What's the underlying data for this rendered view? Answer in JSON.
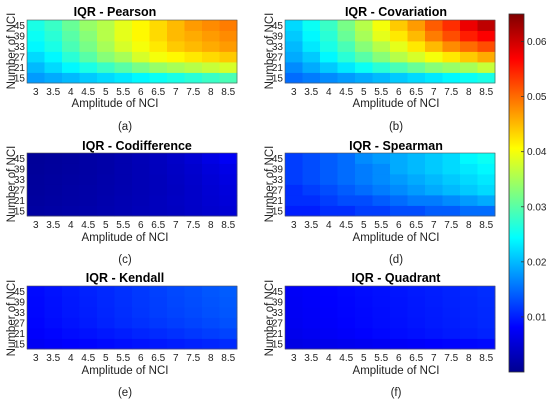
{
  "chart_data": [
    {
      "type": "heatmap",
      "title": "IQR - Pearson",
      "caption": "(a)",
      "xlabel": "Amplitude of NCI",
      "ylabel": "Number of NCI",
      "x": [
        3,
        3.5,
        4,
        4.5,
        5,
        5.5,
        6,
        6.5,
        7,
        7.5,
        8,
        8.5
      ],
      "x_ticks": [
        "3",
        "3.5",
        "4",
        "4.5",
        "5",
        "5.5",
        "6",
        "6.5",
        "7",
        "7.5",
        "8",
        "8.5"
      ],
      "y": [
        15,
        21,
        27,
        33,
        39,
        45
      ],
      "y_ticks": [
        "15",
        "21",
        "27",
        "33",
        "39",
        "45"
      ],
      "z": [
        [
          0.018,
          0.019,
          0.02,
          0.021,
          0.022,
          0.023,
          0.024,
          0.025,
          0.026,
          0.027,
          0.028,
          0.029
        ],
        [
          0.02,
          0.022,
          0.024,
          0.026,
          0.028,
          0.03,
          0.032,
          0.034,
          0.035,
          0.036,
          0.037,
          0.038
        ],
        [
          0.022,
          0.024,
          0.027,
          0.03,
          0.033,
          0.035,
          0.038,
          0.04,
          0.041,
          0.042,
          0.043,
          0.044
        ],
        [
          0.024,
          0.026,
          0.029,
          0.032,
          0.035,
          0.038,
          0.04,
          0.042,
          0.044,
          0.045,
          0.046,
          0.047
        ],
        [
          0.025,
          0.027,
          0.03,
          0.033,
          0.036,
          0.039,
          0.041,
          0.043,
          0.045,
          0.046,
          0.047,
          0.048
        ],
        [
          0.026,
          0.028,
          0.031,
          0.034,
          0.036,
          0.039,
          0.041,
          0.043,
          0.045,
          0.047,
          0.048,
          0.049
        ]
      ]
    },
    {
      "type": "heatmap",
      "title": "IQR - Covariation",
      "caption": "(b)",
      "xlabel": "Amplitude of NCI",
      "ylabel": "Number of NCI",
      "x": [
        3,
        3.5,
        4,
        4.5,
        5,
        5.5,
        6,
        6.5,
        7,
        7.5,
        8,
        8.5
      ],
      "x_ticks": [
        "3",
        "3.5",
        "4",
        "4.5",
        "5",
        "5.5",
        "6",
        "6.5",
        "7",
        "7.5",
        "8",
        "8.5"
      ],
      "y": [
        15,
        21,
        27,
        33,
        39,
        45
      ],
      "y_ticks": [
        "15",
        "21",
        "27",
        "33",
        "39",
        "45"
      ],
      "z": [
        [
          0.015,
          0.016,
          0.017,
          0.018,
          0.019,
          0.02,
          0.021,
          0.022,
          0.023,
          0.024,
          0.025,
          0.026
        ],
        [
          0.017,
          0.019,
          0.021,
          0.023,
          0.025,
          0.027,
          0.029,
          0.031,
          0.033,
          0.034,
          0.035,
          0.037
        ],
        [
          0.019,
          0.021,
          0.024,
          0.027,
          0.03,
          0.033,
          0.036,
          0.038,
          0.04,
          0.042,
          0.044,
          0.046
        ],
        [
          0.02,
          0.023,
          0.026,
          0.029,
          0.033,
          0.036,
          0.039,
          0.042,
          0.045,
          0.048,
          0.05,
          0.052
        ],
        [
          0.021,
          0.024,
          0.027,
          0.031,
          0.035,
          0.039,
          0.042,
          0.045,
          0.049,
          0.052,
          0.055,
          0.057
        ],
        [
          0.022,
          0.025,
          0.028,
          0.032,
          0.036,
          0.04,
          0.044,
          0.047,
          0.051,
          0.054,
          0.058,
          0.061
        ]
      ]
    },
    {
      "type": "heatmap",
      "title": "IQR - Codifference",
      "caption": "(c)",
      "xlabel": "Amplitude of NCI",
      "ylabel": "Number of NCI",
      "x": [
        3,
        3.5,
        4,
        4.5,
        5,
        5.5,
        6,
        6.5,
        7,
        7.5,
        8,
        8.5
      ],
      "x_ticks": [
        "3",
        "3.5",
        "4",
        "4.5",
        "5",
        "5.5",
        "6",
        "6.5",
        "7",
        "7.5",
        "8",
        "8.5"
      ],
      "y": [
        15,
        21,
        27,
        33,
        39,
        45
      ],
      "y_ticks": [
        "15",
        "21",
        "27",
        "33",
        "39",
        "45"
      ],
      "z": [
        [
          0.0022,
          0.0024,
          0.0026,
          0.0028,
          0.003,
          0.0033,
          0.0036,
          0.0039,
          0.0042,
          0.0046,
          0.005,
          0.0054
        ],
        [
          0.002,
          0.0022,
          0.0024,
          0.0026,
          0.0029,
          0.0032,
          0.0035,
          0.0039,
          0.0043,
          0.0047,
          0.0052,
          0.0057
        ],
        [
          0.0019,
          0.0021,
          0.0023,
          0.0025,
          0.0028,
          0.0031,
          0.0034,
          0.0038,
          0.0042,
          0.0047,
          0.0053,
          0.0059
        ],
        [
          0.0018,
          0.002,
          0.0022,
          0.0024,
          0.0027,
          0.003,
          0.0034,
          0.0038,
          0.0043,
          0.0048,
          0.0055,
          0.0062
        ],
        [
          0.0017,
          0.0019,
          0.0021,
          0.0023,
          0.0026,
          0.003,
          0.0034,
          0.0039,
          0.0044,
          0.005,
          0.0058,
          0.0066
        ],
        [
          0.0016,
          0.0018,
          0.002,
          0.0023,
          0.0026,
          0.003,
          0.0035,
          0.004,
          0.0046,
          0.0054,
          0.0064,
          0.0075
        ]
      ]
    },
    {
      "type": "heatmap",
      "title": "IQR - Spearman",
      "caption": "(d)",
      "xlabel": "Amplitude of NCI",
      "ylabel": "Number of NCI",
      "x": [
        3,
        3.5,
        4,
        4.5,
        5,
        5.5,
        6,
        6.5,
        7,
        7.5,
        8,
        8.5
      ],
      "x_ticks": [
        "3",
        "3.5",
        "4",
        "4.5",
        "5",
        "5.5",
        "6",
        "6.5",
        "7",
        "7.5",
        "8",
        "8.5"
      ],
      "y": [
        15,
        21,
        27,
        33,
        39,
        45
      ],
      "y_ticks": [
        "15",
        "21",
        "27",
        "33",
        "39",
        "45"
      ],
      "z": [
        [
          0.01,
          0.01,
          0.011,
          0.011,
          0.012,
          0.012,
          0.013,
          0.013,
          0.014,
          0.014,
          0.015,
          0.015
        ],
        [
          0.011,
          0.011,
          0.012,
          0.013,
          0.013,
          0.014,
          0.015,
          0.016,
          0.016,
          0.017,
          0.018,
          0.019
        ],
        [
          0.011,
          0.012,
          0.013,
          0.014,
          0.015,
          0.016,
          0.017,
          0.018,
          0.019,
          0.02,
          0.021,
          0.022
        ],
        [
          0.012,
          0.013,
          0.014,
          0.015,
          0.016,
          0.017,
          0.018,
          0.019,
          0.02,
          0.021,
          0.022,
          0.023
        ],
        [
          0.012,
          0.013,
          0.014,
          0.015,
          0.016,
          0.017,
          0.019,
          0.02,
          0.021,
          0.022,
          0.023,
          0.024
        ],
        [
          0.012,
          0.013,
          0.014,
          0.015,
          0.017,
          0.018,
          0.019,
          0.02,
          0.021,
          0.022,
          0.024,
          0.025
        ]
      ]
    },
    {
      "type": "heatmap",
      "title": "IQR - Kendall",
      "caption": "(e)",
      "xlabel": "Amplitude of NCI",
      "ylabel": "Number of NCI",
      "x": [
        3,
        3.5,
        4,
        4.5,
        5,
        5.5,
        6,
        6.5,
        7,
        7.5,
        8,
        8.5
      ],
      "x_ticks": [
        "3",
        "3.5",
        "4",
        "4.5",
        "5",
        "5.5",
        "6",
        "6.5",
        "7",
        "7.5",
        "8",
        "8.5"
      ],
      "y": [
        15,
        21,
        27,
        33,
        39,
        45
      ],
      "y_ticks": [
        "15",
        "21",
        "27",
        "33",
        "39",
        "45"
      ],
      "z": [
        [
          0.0075,
          0.0078,
          0.0081,
          0.0084,
          0.0087,
          0.009,
          0.0093,
          0.0096,
          0.0099,
          0.0102,
          0.0105,
          0.0108
        ],
        [
          0.008,
          0.0084,
          0.0088,
          0.0092,
          0.0096,
          0.01,
          0.0104,
          0.0108,
          0.0112,
          0.0116,
          0.012,
          0.0124
        ],
        [
          0.0083,
          0.0088,
          0.0093,
          0.0098,
          0.0103,
          0.0108,
          0.0112,
          0.0116,
          0.012,
          0.0124,
          0.0128,
          0.0132
        ],
        [
          0.0085,
          0.009,
          0.0095,
          0.01,
          0.0105,
          0.011,
          0.0115,
          0.012,
          0.0124,
          0.0128,
          0.0132,
          0.0136
        ],
        [
          0.0086,
          0.0091,
          0.0096,
          0.0101,
          0.0106,
          0.0111,
          0.0116,
          0.0121,
          0.0126,
          0.013,
          0.0134,
          0.0138
        ],
        [
          0.0087,
          0.0092,
          0.0097,
          0.0102,
          0.0107,
          0.0112,
          0.0117,
          0.0122,
          0.0127,
          0.0131,
          0.0136,
          0.014
        ]
      ]
    },
    {
      "type": "heatmap",
      "title": "IQR - Quadrant",
      "caption": "(f)",
      "xlabel": "Amplitude of NCI",
      "ylabel": "Number of NCI",
      "x": [
        3,
        3.5,
        4,
        4.5,
        5,
        5.5,
        6,
        6.5,
        7,
        7.5,
        8,
        8.5
      ],
      "x_ticks": [
        "3",
        "3.5",
        "4",
        "4.5",
        "5",
        "5.5",
        "6",
        "6.5",
        "7",
        "7.5",
        "8",
        "8.5"
      ],
      "y": [
        15,
        21,
        27,
        33,
        39,
        45
      ],
      "y_ticks": [
        "15",
        "21",
        "27",
        "33",
        "39",
        "45"
      ],
      "z": [
        [
          0.0065,
          0.0067,
          0.0069,
          0.0071,
          0.0073,
          0.0075,
          0.0077,
          0.0079,
          0.0081,
          0.0083,
          0.0085,
          0.0087
        ],
        [
          0.007,
          0.0073,
          0.0076,
          0.0079,
          0.0082,
          0.0085,
          0.0088,
          0.0091,
          0.0094,
          0.0097,
          0.01,
          0.0103
        ],
        [
          0.0073,
          0.0076,
          0.0079,
          0.0082,
          0.0085,
          0.0088,
          0.0091,
          0.0094,
          0.0097,
          0.01,
          0.0103,
          0.0106
        ],
        [
          0.0074,
          0.0077,
          0.008,
          0.0083,
          0.0086,
          0.0089,
          0.0092,
          0.0095,
          0.0098,
          0.0101,
          0.0104,
          0.0107
        ],
        [
          0.0075,
          0.0078,
          0.0081,
          0.0084,
          0.0087,
          0.009,
          0.0093,
          0.0096,
          0.0099,
          0.0102,
          0.0105,
          0.0108
        ],
        [
          0.0076,
          0.0079,
          0.0082,
          0.0085,
          0.0088,
          0.0091,
          0.0094,
          0.0097,
          0.01,
          0.0103,
          0.0106,
          0.0109
        ]
      ]
    }
  ],
  "colorbar": {
    "colormap": "jet",
    "min": 0,
    "max": 0.065,
    "ticks": [
      0.01,
      0.02,
      0.03,
      0.04,
      0.05,
      0.06
    ],
    "tick_labels": [
      "0.01",
      "0.02",
      "0.03",
      "0.04",
      "0.05",
      "0.06"
    ]
  }
}
